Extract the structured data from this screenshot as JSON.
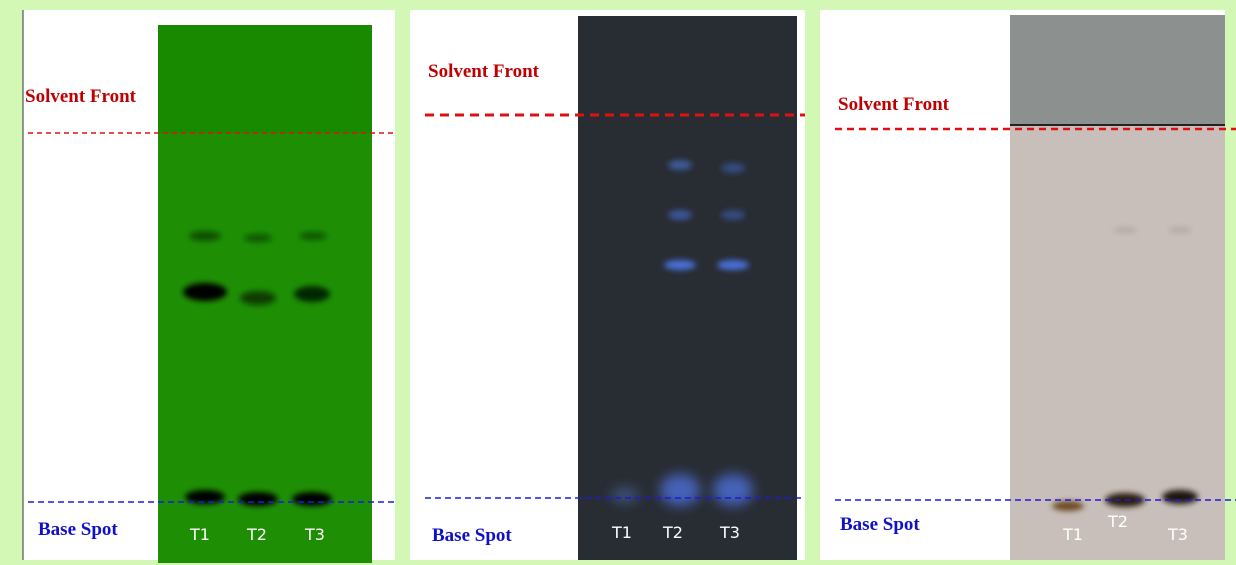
{
  "panels": [
    {
      "solvent_front_label": "Solvent Front",
      "base_spot_label": "Base Spot",
      "lanes": [
        "T1",
        "T2",
        "T3"
      ]
    },
    {
      "solvent_front_label": "Solvent Front",
      "base_spot_label": "Base Spot",
      "lanes": [
        "T1",
        "T2",
        "T3"
      ]
    },
    {
      "solvent_front_label": "Solvent Front",
      "base_spot_label": "Base Spot",
      "lanes": [
        "T1",
        "T2",
        "T3"
      ]
    }
  ]
}
